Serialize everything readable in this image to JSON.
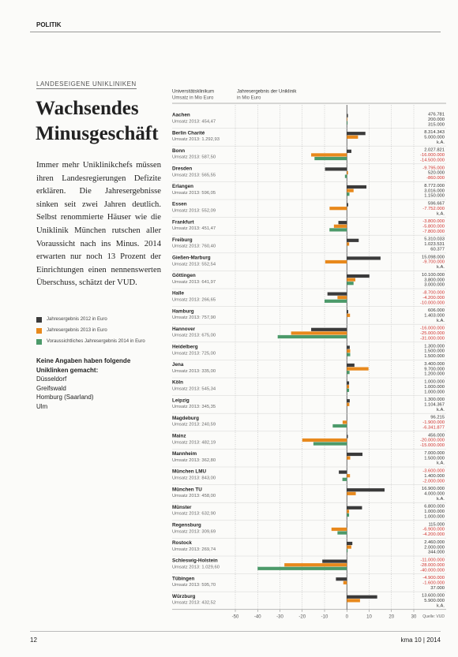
{
  "header": {
    "section": "POLITIK"
  },
  "article": {
    "kicker": "LANDESEIGENE UNIKLINIKEN",
    "title": "Wachsendes Minusgeschäft",
    "body": "Immer mehr Uniklinikchefs müssen ihren Landesregierungen Defizite erklären. Die Jahresergebnisse sinken seit zwei Jahren deutlich. Selbst renommierte Häuser wie die Uniklinik München rutschen aller Voraussicht nach ins Minus. 2014 erwarten nur noch 13 Prozent der Einrichtungen einen nennenswerten Überschuss, schätzt der VUD."
  },
  "note": {
    "title": "Keine Angaben haben folgende Uniklinken gemacht:",
    "items": [
      "Düsseldorf",
      "Greifswald",
      "Homburg (Saarland)",
      "Ulm"
    ]
  },
  "footer": {
    "page": "12",
    "magazine": "kma 10 | 2014"
  },
  "chart_data": {
    "type": "bar",
    "orientation": "horizontal",
    "column_headers": [
      {
        "title": "Universitätsklinikum",
        "subtitle": "Umsatz in Mio Euro"
      },
      {
        "title": "Jahresergebnis der Uniklinik",
        "subtitle": "in Mio Euro"
      }
    ],
    "categories": [
      "Aachen",
      "Berlin Charité",
      "Bonn",
      "Dresden",
      "Erlangen",
      "Essen",
      "Frankfurt",
      "Freiburg",
      "Gießen-Marburg",
      "Göttingen",
      "Halle",
      "Hamburg",
      "Hannover",
      "Heidelberg",
      "Jena",
      "Köln",
      "Leipzig",
      "Magdeburg",
      "Mainz",
      "Mannheim",
      "München LMU",
      "München TU",
      "Münster",
      "Regensburg",
      "Rostock",
      "Schleswig-Holstein",
      "Tübingen",
      "Würzburg"
    ],
    "category_notes": [
      "Umsatz 2013: 454,47",
      "Umsatz 2013: 1.292,93",
      "Umsatz 2013: 587,50",
      "Umsatz 2013: 565,55",
      "Umsatz 2013: 596,05",
      "Umsatz 2013: 552,09",
      "Umsatz 2013: 451,47",
      "Umsatz 2013: 760,40",
      "Umsatz 2013: 552,54",
      "Umsatz 2013: 641,97",
      "Umsatz 2013: 266,65",
      "Umsatz 2013: 757,90",
      "Umsatz 2013: 675,00",
      "Umsatz 2013: 725,00",
      "Umsatz 2013: 335,00",
      "Umsatz 2013: 545,34",
      "Umsatz 2013: 345,35",
      "Umsatz 2013: 240,59",
      "Umsatz 2013: 482,19",
      "Umsatz 2013: 362,80",
      "Umsatz 2013: 843,00",
      "Umsatz 2013: 458,00",
      "Umsatz 2013: 632,90",
      "Umsatz 2013: 309,69",
      "Umsatz 2013: 269,74",
      "Umsatz 2013: 1.029,60",
      "Umsatz 2013: 595,70",
      "Umsatz 2013: 432,52"
    ],
    "series": [
      {
        "name": "Jahresergebnis 2012 in Euro",
        "color": "#3b3b3b",
        "values": [
          0.476781,
          8.314343,
          2.027821,
          -9.795,
          8.772,
          0.596667,
          -3.8,
          5.310033,
          15.098,
          10.1,
          -8.7,
          0.606,
          -16.0,
          1.3,
          3.4,
          1.0,
          1.3,
          0.096215,
          0.456,
          7.0,
          -3.6,
          16.9,
          6.8,
          0.115,
          2.46,
          -11.0,
          -4.9,
          13.6
        ],
        "value_labels": [
          "476.781",
          "8.314.343",
          "2.027.821",
          "-9.795.000",
          "8.772.000",
          "596.667",
          "-3.800.000",
          "5.310.033",
          "15.098.000",
          "10.100.000",
          "-8.700.000",
          "606.000",
          "-16.000.000",
          "1.300.000",
          "3.400.000",
          "1.000.000",
          "1.300.000",
          "96.215",
          "456.000",
          "7.000.000",
          "-3.600.000",
          "16.900.000",
          "6.800.000",
          "115.000",
          "2.460.000",
          "-11.000.000",
          "-4.900.000",
          "13.600.000"
        ]
      },
      {
        "name": "Jahresergebnis 2013 in Euro",
        "color": "#e8891c",
        "values": [
          0.2,
          5.0,
          -16.0,
          0.52,
          3.016,
          -7.752,
          -5.8,
          1.023531,
          -9.7,
          3.8,
          -4.2,
          1.403,
          -25.0,
          1.5,
          9.7,
          1.0,
          1.104367,
          -1.9,
          -20.0,
          1.5,
          1.4,
          4.0,
          1.0,
          -6.9,
          2.0,
          -28.0,
          -1.6,
          5.9
        ],
        "value_labels": [
          "200.000",
          "5.000.000",
          "-16.000.000",
          "520.000",
          "3.016.000",
          "-7.752.000",
          "-5.800.000",
          "1.023.531",
          "-9.700.000",
          "3.800.000",
          "-4.200.000",
          "1.403.000",
          "-25.000.000",
          "1.500.000",
          "9.700.000",
          "1.000.000",
          "1.104.367",
          "-1.900.000",
          "-20.000.000",
          "1.500.000",
          "1.400.000",
          "4.000.000",
          "1.000.000",
          "-6.900.000",
          "2.000.000",
          "-28.000.000",
          "-1.600.000",
          "5.900.000"
        ]
      },
      {
        "name": "Voraussichtliches Jahresergebnis 2014 in Euro",
        "color": "#4c9a6a",
        "values": [
          0.315,
          null,
          -14.5,
          -0.86,
          1.15,
          null,
          -7.8,
          0.060377,
          null,
          3.0,
          -10.0,
          null,
          -31.0,
          1.5,
          1.2,
          1.0,
          null,
          -6.341877,
          -15.0,
          null,
          -2.0,
          null,
          1.0,
          -4.2,
          0.344,
          -40.0,
          0.037,
          null
        ],
        "value_labels": [
          "315.000",
          "k.A.",
          "-14.500.000",
          "-860.000",
          "1.150.000",
          "k.A.",
          "-7.800.000",
          "60.377",
          "k.A.",
          "3.000.000",
          "-10.000.000",
          "k.A.",
          "-31.000.000",
          "1.500.000",
          "1.200.000",
          "1.000.000",
          "k.A.",
          "-6.341.877",
          "-15.000.000",
          "k.A.",
          "-2.000.000",
          "k.A.",
          "1.000.000",
          "-4.200.000",
          "344.000",
          "-40.000.000",
          "37.000",
          "k.A."
        ]
      }
    ],
    "xlim": [
      -50,
      30
    ],
    "xticks": [
      -50,
      -40,
      -30,
      -20,
      -10,
      0,
      10,
      20,
      30
    ],
    "grid": true,
    "negative_label_color": "#d0312d",
    "source": "Quelle: VUD"
  }
}
